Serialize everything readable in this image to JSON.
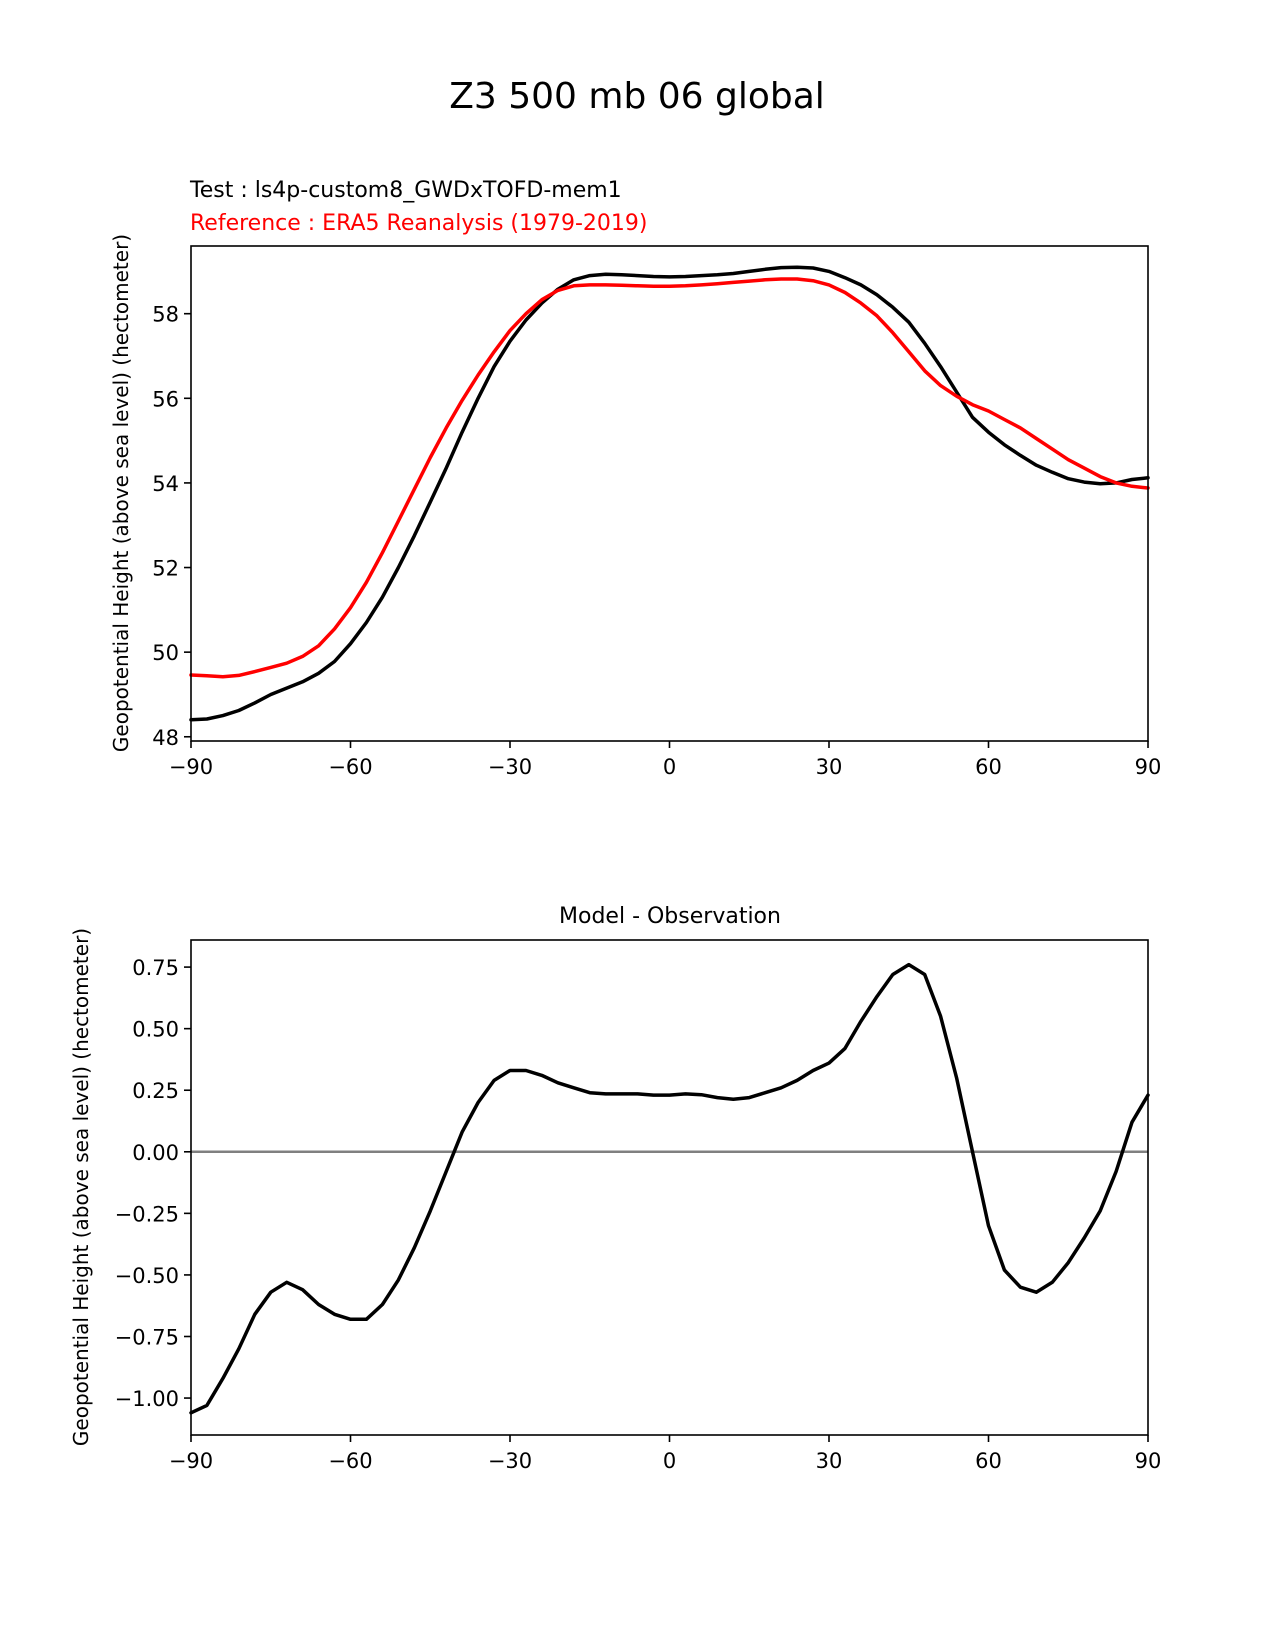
{
  "figure": {
    "title": "Z3 500 mb 06 global"
  },
  "chart_data": [
    {
      "type": "line",
      "test_label": "Test : ls4p-custom8_GWDxTOFD-mem1",
      "reference_label": "Reference : ERA5 Reanalysis (1979-2019)",
      "title": "",
      "xlabel": "",
      "ylabel": "Geopotential Height (above sea level) (hectometer)",
      "xlim": [
        -90,
        90
      ],
      "ylim": [
        47.9,
        59.6
      ],
      "xticks": [
        -90,
        -60,
        -30,
        0,
        30,
        60,
        90
      ],
      "xtick_labels": [
        "−90",
        "−60",
        "−30",
        "0",
        "30",
        "60",
        "90"
      ],
      "yticks": [
        48,
        50,
        52,
        54,
        56,
        58
      ],
      "ytick_labels": [
        "48",
        "50",
        "52",
        "54",
        "56",
        "58"
      ],
      "series": [
        {
          "name": "Test",
          "color": "#000000",
          "x": [
            -90,
            -87,
            -84,
            -81,
            -78,
            -75,
            -72,
            -69,
            -66,
            -63,
            -60,
            -57,
            -54,
            -51,
            -48,
            -45,
            -42,
            -39,
            -36,
            -33,
            -30,
            -27,
            -24,
            -21,
            -18,
            -15,
            -12,
            -9,
            -6,
            -3,
            0,
            3,
            6,
            9,
            12,
            15,
            18,
            21,
            24,
            27,
            30,
            33,
            36,
            39,
            42,
            45,
            48,
            51,
            54,
            57,
            60,
            63,
            66,
            69,
            72,
            75,
            78,
            81,
            84,
            87,
            90
          ],
          "y": [
            48.4,
            48.42,
            48.5,
            48.62,
            48.8,
            49.0,
            49.15,
            49.3,
            49.5,
            49.78,
            50.2,
            50.7,
            51.3,
            52.0,
            52.75,
            53.55,
            54.35,
            55.2,
            56.0,
            56.75,
            57.35,
            57.85,
            58.25,
            58.58,
            58.8,
            58.9,
            58.93,
            58.92,
            58.9,
            58.88,
            58.87,
            58.88,
            58.9,
            58.92,
            58.95,
            59.0,
            59.05,
            59.09,
            59.1,
            59.08,
            59.0,
            58.85,
            58.68,
            58.45,
            58.15,
            57.8,
            57.3,
            56.75,
            56.15,
            55.55,
            55.2,
            54.9,
            54.65,
            54.42,
            54.25,
            54.1,
            54.02,
            53.98,
            54.0,
            54.08,
            54.12
          ]
        },
        {
          "name": "Reference",
          "color": "#ff0000",
          "x": [
            -90,
            -87,
            -84,
            -81,
            -78,
            -75,
            -72,
            -69,
            -66,
            -63,
            -60,
            -57,
            -54,
            -51,
            -48,
            -45,
            -42,
            -39,
            -36,
            -33,
            -30,
            -27,
            -24,
            -21,
            -18,
            -15,
            -12,
            -9,
            -6,
            -3,
            0,
            3,
            6,
            9,
            12,
            15,
            18,
            21,
            24,
            27,
            30,
            33,
            36,
            39,
            42,
            45,
            48,
            51,
            54,
            57,
            60,
            63,
            66,
            69,
            72,
            75,
            78,
            81,
            84,
            87,
            90
          ],
          "y": [
            49.46,
            49.44,
            49.42,
            49.45,
            49.54,
            49.64,
            49.74,
            49.9,
            50.15,
            50.55,
            51.05,
            51.65,
            52.35,
            53.1,
            53.85,
            54.6,
            55.3,
            55.95,
            56.55,
            57.1,
            57.6,
            58.0,
            58.33,
            58.55,
            58.66,
            58.68,
            58.68,
            58.67,
            58.66,
            58.65,
            58.65,
            58.66,
            58.68,
            58.71,
            58.74,
            58.77,
            58.8,
            58.82,
            58.82,
            58.78,
            58.68,
            58.5,
            58.25,
            57.95,
            57.55,
            57.1,
            56.65,
            56.3,
            56.05,
            55.85,
            55.7,
            55.5,
            55.3,
            55.05,
            54.8,
            54.55,
            54.35,
            54.15,
            54.0,
            53.92,
            53.88
          ]
        }
      ]
    },
    {
      "type": "line",
      "title": "Model - Observation",
      "xlabel": "",
      "ylabel": "Geopotential Height (above sea level) (hectometer)",
      "xlim": [
        -90,
        90
      ],
      "ylim": [
        -1.15,
        0.86
      ],
      "xticks": [
        -90,
        -60,
        -30,
        0,
        30,
        60,
        90
      ],
      "xtick_labels": [
        "−90",
        "−60",
        "−30",
        "0",
        "30",
        "60",
        "90"
      ],
      "yticks": [
        0.75,
        0.5,
        0.25,
        0.0,
        -0.25,
        -0.5,
        -0.75,
        -1.0
      ],
      "ytick_labels": [
        "0.75",
        "0.50",
        "0.25",
        "0.00",
        "−0.25",
        "−0.50",
        "−0.75",
        "−1.00"
      ],
      "zero_line": {
        "value": 0.0,
        "color": "#808080"
      },
      "series": [
        {
          "name": "Model - Observation",
          "color": "#000000",
          "x": [
            -90,
            -87,
            -84,
            -81,
            -78,
            -75,
            -72,
            -69,
            -66,
            -63,
            -60,
            -57,
            -54,
            -51,
            -48,
            -45,
            -42,
            -39,
            -36,
            -33,
            -30,
            -27,
            -24,
            -21,
            -18,
            -15,
            -12,
            -9,
            -6,
            -3,
            0,
            3,
            6,
            9,
            12,
            15,
            18,
            21,
            24,
            27,
            30,
            33,
            36,
            39,
            42,
            45,
            48,
            51,
            54,
            57,
            60,
            63,
            66,
            69,
            72,
            75,
            78,
            81,
            84,
            87,
            90
          ],
          "y": [
            -1.06,
            -1.03,
            -0.92,
            -0.8,
            -0.66,
            -0.57,
            -0.53,
            -0.56,
            -0.62,
            -0.66,
            -0.68,
            -0.68,
            -0.62,
            -0.52,
            -0.39,
            -0.24,
            -0.08,
            0.08,
            0.2,
            0.29,
            0.33,
            0.33,
            0.31,
            0.28,
            0.26,
            0.24,
            0.235,
            0.235,
            0.235,
            0.23,
            0.23,
            0.235,
            0.232,
            0.22,
            0.213,
            0.22,
            0.24,
            0.26,
            0.29,
            0.33,
            0.36,
            0.42,
            0.53,
            0.63,
            0.72,
            0.76,
            0.72,
            0.55,
            0.3,
            0.0,
            -0.3,
            -0.48,
            -0.55,
            -0.57,
            -0.53,
            -0.45,
            -0.35,
            -0.24,
            -0.08,
            0.12,
            0.23
          ]
        }
      ]
    }
  ]
}
